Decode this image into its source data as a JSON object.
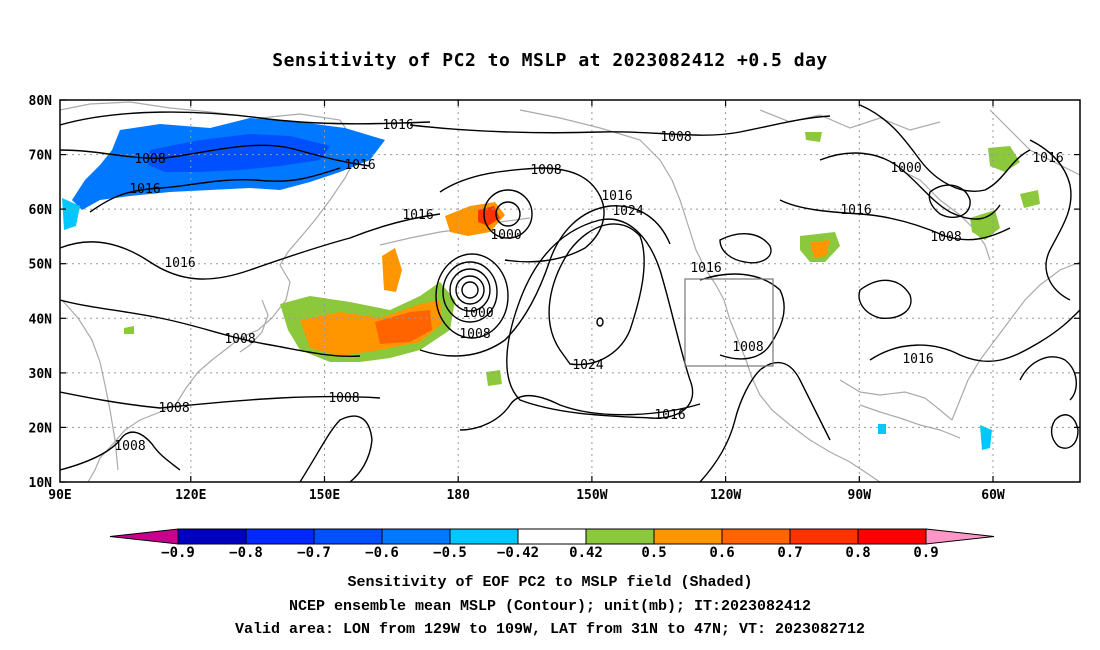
{
  "title": "Sensitivity of PC2 to MSLP at 2023082412 +0.5 day",
  "lat_labels": [
    "80N",
    "70N",
    "60N",
    "50N",
    "40N",
    "30N",
    "20N",
    "10N"
  ],
  "lon_labels": [
    "90E",
    "120E",
    "150E",
    "180",
    "150W",
    "120W",
    "90W",
    "60W"
  ],
  "colorbar": {
    "labels": [
      "-0.9",
      "-0.8",
      "-0.7",
      "-0.6",
      "-0.5",
      "-0.42",
      "0.42",
      "0.5",
      "0.6",
      "0.7",
      "0.8",
      "0.9"
    ],
    "colors": [
      "#c8008c",
      "#0000c0",
      "#0028ff",
      "#0050ff",
      "#0078ff",
      "#00c8ff",
      "#ffffff",
      "#8cc83c",
      "#ff9600",
      "#ff6400",
      "#ff3200",
      "#ff0000",
      "#ff96c8"
    ]
  },
  "contour_labels": [
    {
      "text": "1016"
    },
    {
      "text": "1008"
    },
    {
      "text": "1016"
    },
    {
      "text": "1016"
    },
    {
      "text": "1008"
    },
    {
      "text": "1016"
    },
    {
      "text": "1024"
    },
    {
      "text": "1000"
    },
    {
      "text": "1016"
    },
    {
      "text": "1000"
    },
    {
      "text": "1008"
    },
    {
      "text": "1016"
    },
    {
      "text": "1016"
    },
    {
      "text": "1016"
    },
    {
      "text": "1008"
    },
    {
      "text": "1000"
    },
    {
      "text": "1008"
    },
    {
      "text": "1008"
    },
    {
      "text": "1024"
    },
    {
      "text": "1008"
    },
    {
      "text": "1016"
    },
    {
      "text": "1008"
    },
    {
      "text": "1008"
    },
    {
      "text": "1016"
    },
    {
      "text": "1016"
    }
  ],
  "box_region": {
    "lon_from": "129W",
    "lon_to": "109W",
    "lat_from": "31N",
    "lat_to": "47N"
  },
  "captions": {
    "line1": "Sensitivity of EOF PC2 to MSLP field (Shaded)",
    "line2": "NCEP ensemble mean MSLP (Contour); unit(mb); IT:2023082412",
    "line3": "Valid area: LON from 129W to 109W, LAT from 31N to 47N; VT: 2023082712"
  }
}
